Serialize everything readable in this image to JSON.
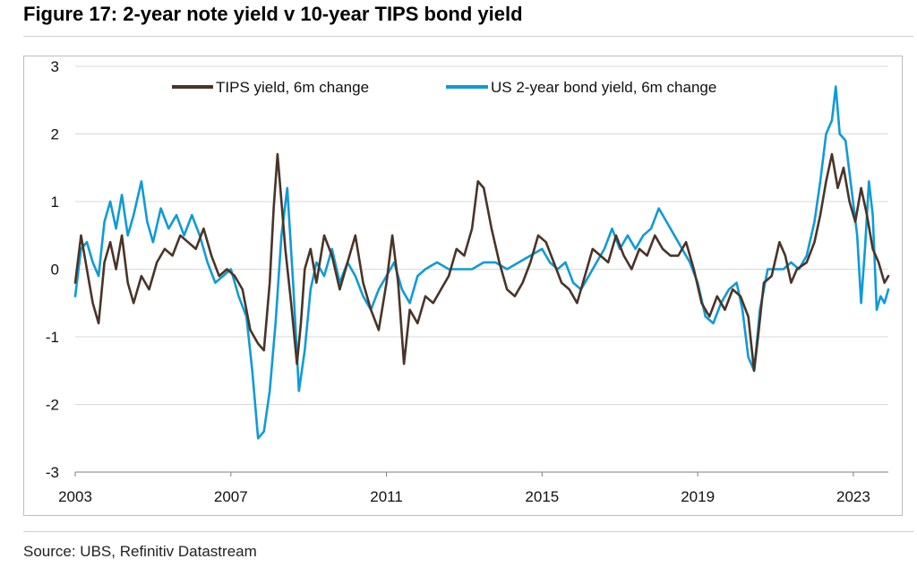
{
  "figure": {
    "title": "Figure 17: 2-year note yield v 10-year TIPS bond yield",
    "source": "Source: UBS, Refinitiv Datastream"
  },
  "chart_data": {
    "type": "line",
    "title": "Figure 17: 2-year note yield v 10-year TIPS bond yield",
    "xlabel": "",
    "ylabel": "",
    "xlim": [
      2003.0,
      2023.9
    ],
    "ylim": [
      -3,
      3
    ],
    "x_ticks": [
      2003,
      2007,
      2011,
      2015,
      2019,
      2023
    ],
    "y_ticks": [
      3,
      2,
      1,
      0,
      -1,
      -2,
      -3
    ],
    "grid": "horizontal",
    "legend_position": "top",
    "series": [
      {
        "name": "TIPS yield, 6m change",
        "color": "#4a3428",
        "points": [
          [
            2003.0,
            -0.2
          ],
          [
            2003.15,
            0.5
          ],
          [
            2003.3,
            0.0
          ],
          [
            2003.45,
            -0.5
          ],
          [
            2003.6,
            -0.8
          ],
          [
            2003.75,
            0.1
          ],
          [
            2003.9,
            0.4
          ],
          [
            2004.05,
            0.0
          ],
          [
            2004.2,
            0.5
          ],
          [
            2004.35,
            -0.2
          ],
          [
            2004.5,
            -0.5
          ],
          [
            2004.7,
            -0.1
          ],
          [
            2004.9,
            -0.3
          ],
          [
            2005.1,
            0.1
          ],
          [
            2005.3,
            0.3
          ],
          [
            2005.5,
            0.2
          ],
          [
            2005.7,
            0.5
          ],
          [
            2005.9,
            0.4
          ],
          [
            2006.1,
            0.3
          ],
          [
            2006.3,
            0.6
          ],
          [
            2006.5,
            0.2
          ],
          [
            2006.7,
            -0.1
          ],
          [
            2006.9,
            0.0
          ],
          [
            2007.1,
            -0.1
          ],
          [
            2007.3,
            -0.3
          ],
          [
            2007.5,
            -0.9
          ],
          [
            2007.7,
            -1.1
          ],
          [
            2007.85,
            -1.2
          ],
          [
            2008.0,
            -0.2
          ],
          [
            2008.1,
            0.9
          ],
          [
            2008.2,
            1.7
          ],
          [
            2008.3,
            1.0
          ],
          [
            2008.4,
            0.3
          ],
          [
            2008.55,
            -0.5
          ],
          [
            2008.7,
            -1.4
          ],
          [
            2008.8,
            -0.8
          ],
          [
            2008.9,
            0.0
          ],
          [
            2009.05,
            0.3
          ],
          [
            2009.2,
            -0.2
          ],
          [
            2009.4,
            0.5
          ],
          [
            2009.6,
            0.2
          ],
          [
            2009.8,
            -0.3
          ],
          [
            2010.0,
            0.1
          ],
          [
            2010.2,
            0.5
          ],
          [
            2010.4,
            -0.2
          ],
          [
            2010.6,
            -0.6
          ],
          [
            2010.8,
            -0.9
          ],
          [
            2011.0,
            -0.2
          ],
          [
            2011.15,
            0.5
          ],
          [
            2011.3,
            -0.2
          ],
          [
            2011.45,
            -1.4
          ],
          [
            2011.6,
            -0.6
          ],
          [
            2011.8,
            -0.8
          ],
          [
            2012.0,
            -0.4
          ],
          [
            2012.2,
            -0.5
          ],
          [
            2012.4,
            -0.3
          ],
          [
            2012.6,
            -0.1
          ],
          [
            2012.8,
            0.3
          ],
          [
            2013.0,
            0.2
          ],
          [
            2013.2,
            0.6
          ],
          [
            2013.35,
            1.3
          ],
          [
            2013.5,
            1.2
          ],
          [
            2013.7,
            0.6
          ],
          [
            2013.9,
            0.1
          ],
          [
            2014.1,
            -0.3
          ],
          [
            2014.3,
            -0.4
          ],
          [
            2014.5,
            -0.2
          ],
          [
            2014.7,
            0.1
          ],
          [
            2014.9,
            0.5
          ],
          [
            2015.1,
            0.4
          ],
          [
            2015.3,
            0.1
          ],
          [
            2015.5,
            -0.2
          ],
          [
            2015.7,
            -0.3
          ],
          [
            2015.9,
            -0.5
          ],
          [
            2016.1,
            -0.1
          ],
          [
            2016.3,
            0.3
          ],
          [
            2016.5,
            0.2
          ],
          [
            2016.7,
            0.1
          ],
          [
            2016.9,
            0.5
          ],
          [
            2017.1,
            0.2
          ],
          [
            2017.3,
            0.0
          ],
          [
            2017.5,
            0.3
          ],
          [
            2017.7,
            0.2
          ],
          [
            2017.9,
            0.5
          ],
          [
            2018.1,
            0.3
          ],
          [
            2018.3,
            0.2
          ],
          [
            2018.5,
            0.2
          ],
          [
            2018.7,
            0.4
          ],
          [
            2018.9,
            0.0
          ],
          [
            2019.1,
            -0.5
          ],
          [
            2019.3,
            -0.7
          ],
          [
            2019.5,
            -0.4
          ],
          [
            2019.7,
            -0.6
          ],
          [
            2019.9,
            -0.3
          ],
          [
            2020.1,
            -0.4
          ],
          [
            2020.3,
            -0.7
          ],
          [
            2020.45,
            -1.5
          ],
          [
            2020.55,
            -1.0
          ],
          [
            2020.7,
            -0.2
          ],
          [
            2020.9,
            -0.1
          ],
          [
            2021.1,
            0.4
          ],
          [
            2021.25,
            0.2
          ],
          [
            2021.4,
            -0.2
          ],
          [
            2021.55,
            0.0
          ],
          [
            2021.8,
            0.1
          ],
          [
            2022.0,
            0.4
          ],
          [
            2022.15,
            0.8
          ],
          [
            2022.3,
            1.3
          ],
          [
            2022.45,
            1.7
          ],
          [
            2022.6,
            1.2
          ],
          [
            2022.75,
            1.5
          ],
          [
            2022.9,
            1.0
          ],
          [
            2023.05,
            0.7
          ],
          [
            2023.2,
            1.2
          ],
          [
            2023.35,
            0.8
          ],
          [
            2023.5,
            0.3
          ],
          [
            2023.65,
            0.1
          ],
          [
            2023.8,
            -0.2
          ],
          [
            2023.9,
            -0.1
          ]
        ]
      },
      {
        "name": "US 2-year bond yield, 6m change",
        "color": "#0f9bd7",
        "points": [
          [
            2003.0,
            -0.4
          ],
          [
            2003.15,
            0.3
          ],
          [
            2003.3,
            0.4
          ],
          [
            2003.45,
            0.1
          ],
          [
            2003.6,
            -0.1
          ],
          [
            2003.75,
            0.7
          ],
          [
            2003.9,
            1.0
          ],
          [
            2004.05,
            0.6
          ],
          [
            2004.2,
            1.1
          ],
          [
            2004.35,
            0.5
          ],
          [
            2004.5,
            0.8
          ],
          [
            2004.7,
            1.3
          ],
          [
            2004.85,
            0.7
          ],
          [
            2005.0,
            0.4
          ],
          [
            2005.2,
            0.9
          ],
          [
            2005.4,
            0.6
          ],
          [
            2005.6,
            0.8
          ],
          [
            2005.8,
            0.5
          ],
          [
            2006.0,
            0.8
          ],
          [
            2006.2,
            0.5
          ],
          [
            2006.4,
            0.1
          ],
          [
            2006.6,
            -0.2
          ],
          [
            2006.8,
            -0.1
          ],
          [
            2007.0,
            0.0
          ],
          [
            2007.2,
            -0.4
          ],
          [
            2007.4,
            -0.7
          ],
          [
            2007.55,
            -1.5
          ],
          [
            2007.7,
            -2.5
          ],
          [
            2007.85,
            -2.4
          ],
          [
            2008.0,
            -1.8
          ],
          [
            2008.15,
            -0.8
          ],
          [
            2008.3,
            0.5
          ],
          [
            2008.45,
            1.2
          ],
          [
            2008.6,
            -0.2
          ],
          [
            2008.75,
            -1.8
          ],
          [
            2008.9,
            -1.2
          ],
          [
            2009.05,
            -0.3
          ],
          [
            2009.2,
            0.1
          ],
          [
            2009.4,
            -0.1
          ],
          [
            2009.6,
            0.3
          ],
          [
            2009.8,
            -0.2
          ],
          [
            2010.0,
            0.1
          ],
          [
            2010.2,
            -0.1
          ],
          [
            2010.4,
            -0.4
          ],
          [
            2010.6,
            -0.6
          ],
          [
            2010.8,
            -0.3
          ],
          [
            2011.0,
            -0.1
          ],
          [
            2011.2,
            0.1
          ],
          [
            2011.4,
            -0.3
          ],
          [
            2011.6,
            -0.5
          ],
          [
            2011.8,
            -0.1
          ],
          [
            2012.0,
            0.0
          ],
          [
            2012.3,
            0.1
          ],
          [
            2012.6,
            0.0
          ],
          [
            2012.9,
            0.0
          ],
          [
            2013.2,
            0.0
          ],
          [
            2013.5,
            0.1
          ],
          [
            2013.8,
            0.1
          ],
          [
            2014.1,
            0.0
          ],
          [
            2014.4,
            0.1
          ],
          [
            2014.7,
            0.2
          ],
          [
            2015.0,
            0.3
          ],
          [
            2015.2,
            0.1
          ],
          [
            2015.4,
            0.0
          ],
          [
            2015.6,
            0.1
          ],
          [
            2015.8,
            -0.2
          ],
          [
            2016.0,
            -0.3
          ],
          [
            2016.2,
            -0.1
          ],
          [
            2016.4,
            0.1
          ],
          [
            2016.6,
            0.3
          ],
          [
            2016.8,
            0.6
          ],
          [
            2017.0,
            0.3
          ],
          [
            2017.2,
            0.5
          ],
          [
            2017.4,
            0.3
          ],
          [
            2017.6,
            0.5
          ],
          [
            2017.8,
            0.6
          ],
          [
            2018.0,
            0.9
          ],
          [
            2018.2,
            0.7
          ],
          [
            2018.4,
            0.5
          ],
          [
            2018.6,
            0.3
          ],
          [
            2018.8,
            0.1
          ],
          [
            2019.0,
            -0.2
          ],
          [
            2019.2,
            -0.7
          ],
          [
            2019.4,
            -0.8
          ],
          [
            2019.6,
            -0.5
          ],
          [
            2019.8,
            -0.3
          ],
          [
            2020.0,
            -0.2
          ],
          [
            2020.15,
            -0.6
          ],
          [
            2020.3,
            -1.3
          ],
          [
            2020.45,
            -1.5
          ],
          [
            2020.6,
            -0.6
          ],
          [
            2020.8,
            0.0
          ],
          [
            2021.0,
            0.0
          ],
          [
            2021.2,
            0.0
          ],
          [
            2021.4,
            0.1
          ],
          [
            2021.6,
            0.0
          ],
          [
            2021.8,
            0.2
          ],
          [
            2022.0,
            0.7
          ],
          [
            2022.15,
            1.3
          ],
          [
            2022.3,
            2.0
          ],
          [
            2022.45,
            2.2
          ],
          [
            2022.55,
            2.7
          ],
          [
            2022.65,
            2.0
          ],
          [
            2022.8,
            1.9
          ],
          [
            2022.95,
            1.2
          ],
          [
            2023.1,
            0.5
          ],
          [
            2023.2,
            -0.5
          ],
          [
            2023.3,
            0.3
          ],
          [
            2023.4,
            1.3
          ],
          [
            2023.5,
            0.8
          ],
          [
            2023.6,
            -0.6
          ],
          [
            2023.7,
            -0.4
          ],
          [
            2023.8,
            -0.5
          ],
          [
            2023.9,
            -0.3
          ]
        ]
      }
    ]
  }
}
